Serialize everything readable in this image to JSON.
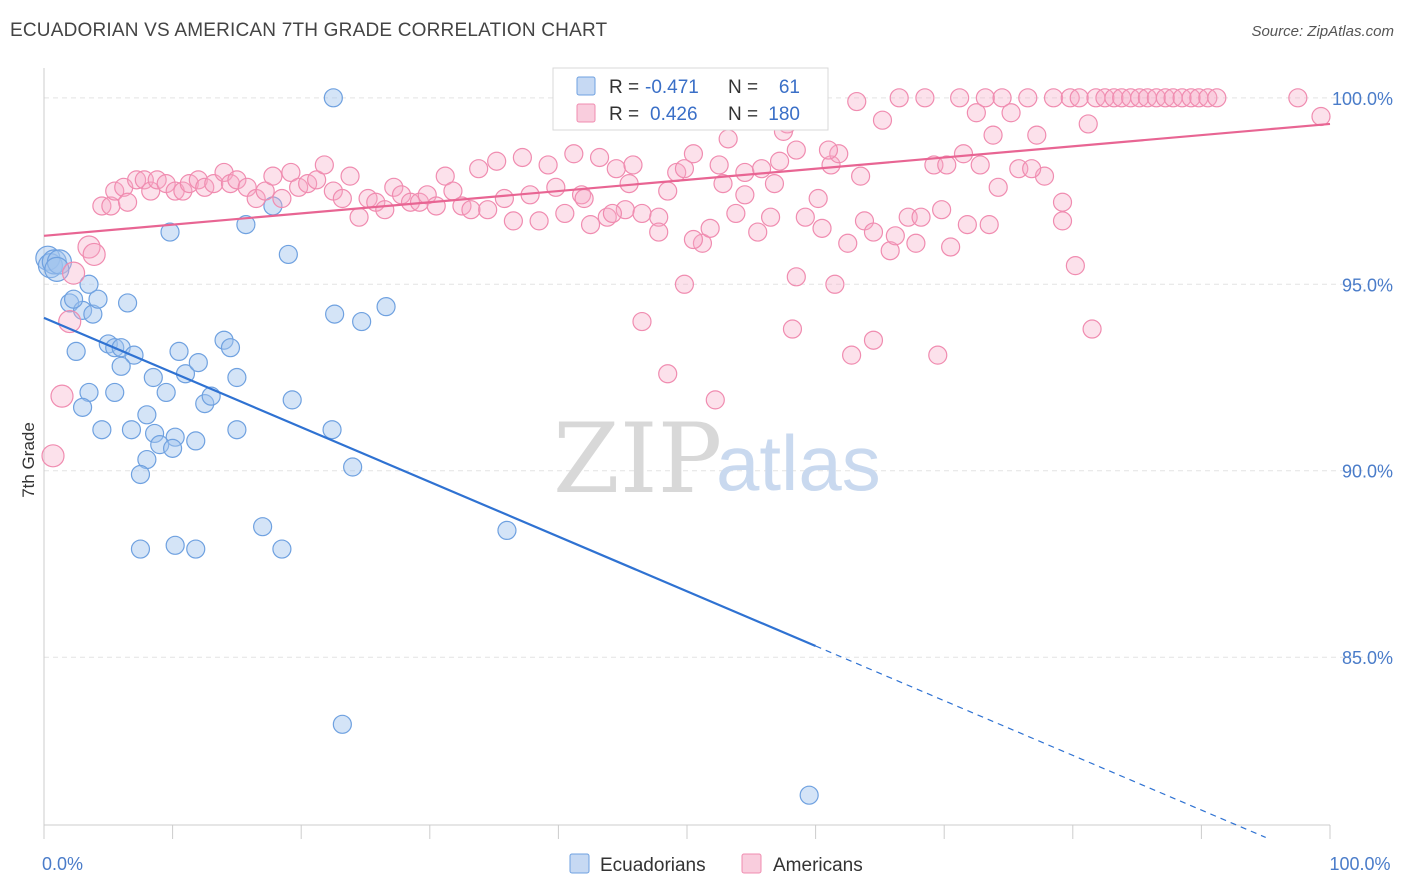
{
  "header": {
    "title": "ECUADORIAN VS AMERICAN 7TH GRADE CORRELATION CHART",
    "source": "Source: ZipAtlas.com"
  },
  "watermark": {
    "part1": "ZIP",
    "part2": "atlas"
  },
  "legend": {
    "r_label": "R =",
    "n_label": "N =",
    "rows": [
      {
        "r": "-0.471",
        "n": "61",
        "color": "#6fa1e0"
      },
      {
        "r": "0.426",
        "n": "180",
        "color": "#f08cb0"
      }
    ]
  },
  "bottom_legend": [
    {
      "label": "Ecuadorians",
      "color": "#6fa1e0"
    },
    {
      "label": "Americans",
      "color": "#f08cb0"
    }
  ],
  "chart_data": {
    "type": "scatter",
    "ylabel": "7th Grade",
    "xlim": [
      0,
      100
    ],
    "ylim": [
      80.5,
      100.8
    ],
    "y_ticks": [
      {
        "value": 100,
        "label": "100.0%"
      },
      {
        "value": 95,
        "label": "95.0%"
      },
      {
        "value": 90,
        "label": "90.0%"
      },
      {
        "value": 85,
        "label": "85.0%"
      }
    ],
    "x_tick_labels": [
      {
        "value": 0,
        "label": "0.0%"
      },
      {
        "value": 100,
        "label": "100.0%"
      }
    ],
    "x_minor_ticks": [
      0,
      10,
      20,
      30,
      40,
      50,
      60,
      70,
      80,
      90,
      100
    ],
    "grid": true,
    "series": [
      {
        "name": "Ecuadorians",
        "color": "#6fa1e0",
        "trend": {
          "x0": 0,
          "y0": 94.1,
          "x1": 60,
          "y1": 85.3,
          "dash_to_x": 95
        },
        "points": [
          [
            0.3,
            95.7
          ],
          [
            0.5,
            95.5
          ],
          [
            0.8,
            95.6
          ],
          [
            1.2,
            95.6
          ],
          [
            3.5,
            95.0
          ],
          [
            2.0,
            94.5
          ],
          [
            3.0,
            94.3
          ],
          [
            3.8,
            94.2
          ],
          [
            4.2,
            94.6
          ],
          [
            6.5,
            94.5
          ],
          [
            5.0,
            93.4
          ],
          [
            5.5,
            93.3
          ],
          [
            6.0,
            93.3
          ],
          [
            7.0,
            93.1
          ],
          [
            2.5,
            93.2
          ],
          [
            8.5,
            92.5
          ],
          [
            9.5,
            92.1
          ],
          [
            10.5,
            93.2
          ],
          [
            11.0,
            92.6
          ],
          [
            12.0,
            92.9
          ],
          [
            14.0,
            93.5
          ],
          [
            14.5,
            93.3
          ],
          [
            15.0,
            92.5
          ],
          [
            6.0,
            92.8
          ],
          [
            3.5,
            92.1
          ],
          [
            5.5,
            92.1
          ],
          [
            3.0,
            91.7
          ],
          [
            8.0,
            91.5
          ],
          [
            12.5,
            91.8
          ],
          [
            13.0,
            92.0
          ],
          [
            4.5,
            91.1
          ],
          [
            6.8,
            91.1
          ],
          [
            8.6,
            91.0
          ],
          [
            10.2,
            90.9
          ],
          [
            11.8,
            90.8
          ],
          [
            15.0,
            91.1
          ],
          [
            9.0,
            90.7
          ],
          [
            10.0,
            90.6
          ],
          [
            8.0,
            90.3
          ],
          [
            7.5,
            89.9
          ],
          [
            17.0,
            88.5
          ],
          [
            7.5,
            87.9
          ],
          [
            10.2,
            88.0
          ],
          [
            11.8,
            87.9
          ],
          [
            18.5,
            87.9
          ],
          [
            22.5,
            100.0
          ],
          [
            9.8,
            96.4
          ],
          [
            15.7,
            96.6
          ],
          [
            17.8,
            97.1
          ],
          [
            19.0,
            95.8
          ],
          [
            22.6,
            94.2
          ],
          [
            24.7,
            94.0
          ],
          [
            26.6,
            94.4
          ],
          [
            19.3,
            91.9
          ],
          [
            22.4,
            91.1
          ],
          [
            24.0,
            90.1
          ],
          [
            36.0,
            88.4
          ],
          [
            23.2,
            83.2
          ],
          [
            59.5,
            81.3
          ],
          [
            1.0,
            95.4
          ],
          [
            2.3,
            94.6
          ]
        ]
      },
      {
        "name": "Americans",
        "color": "#f08cb0",
        "trend": {
          "x0": 0,
          "y0": 96.3,
          "x1": 100,
          "y1": 99.3
        },
        "points": [
          [
            0.7,
            90.4
          ],
          [
            1.4,
            92.0
          ],
          [
            2.0,
            94.0
          ],
          [
            2.3,
            95.3
          ],
          [
            3.5,
            96.0
          ],
          [
            3.9,
            95.8
          ],
          [
            4.5,
            97.1
          ],
          [
            5.2,
            97.1
          ],
          [
            5.5,
            97.5
          ],
          [
            6.2,
            97.6
          ],
          [
            6.5,
            97.2
          ],
          [
            7.2,
            97.8
          ],
          [
            7.8,
            97.8
          ],
          [
            8.3,
            97.5
          ],
          [
            8.8,
            97.8
          ],
          [
            9.5,
            97.7
          ],
          [
            10.2,
            97.5
          ],
          [
            10.8,
            97.5
          ],
          [
            11.3,
            97.7
          ],
          [
            12.0,
            97.8
          ],
          [
            12.5,
            97.6
          ],
          [
            13.2,
            97.7
          ],
          [
            14.0,
            98.0
          ],
          [
            14.5,
            97.7
          ],
          [
            15.0,
            97.8
          ],
          [
            15.8,
            97.6
          ],
          [
            16.5,
            97.3
          ],
          [
            17.2,
            97.5
          ],
          [
            17.8,
            97.9
          ],
          [
            18.5,
            97.3
          ],
          [
            19.2,
            98.0
          ],
          [
            19.8,
            97.6
          ],
          [
            20.5,
            97.7
          ],
          [
            21.2,
            97.8
          ],
          [
            21.8,
            98.2
          ],
          [
            22.5,
            97.5
          ],
          [
            23.2,
            97.3
          ],
          [
            23.8,
            97.9
          ],
          [
            24.5,
            96.8
          ],
          [
            25.2,
            97.3
          ],
          [
            25.8,
            97.2
          ],
          [
            26.5,
            97.0
          ],
          [
            27.2,
            97.6
          ],
          [
            27.8,
            97.4
          ],
          [
            28.5,
            97.2
          ],
          [
            29.2,
            97.2
          ],
          [
            29.8,
            97.4
          ],
          [
            30.5,
            97.1
          ],
          [
            31.2,
            97.9
          ],
          [
            31.8,
            97.5
          ],
          [
            32.5,
            97.1
          ],
          [
            33.2,
            97.0
          ],
          [
            33.8,
            98.1
          ],
          [
            34.5,
            97.0
          ],
          [
            35.2,
            98.3
          ],
          [
            35.8,
            97.3
          ],
          [
            36.5,
            96.7
          ],
          [
            37.2,
            98.4
          ],
          [
            37.8,
            97.4
          ],
          [
            38.5,
            96.7
          ],
          [
            39.2,
            98.2
          ],
          [
            39.8,
            97.6
          ],
          [
            40.5,
            96.9
          ],
          [
            41.2,
            98.5
          ],
          [
            41.8,
            97.4
          ],
          [
            42.5,
            96.6
          ],
          [
            43.2,
            98.4
          ],
          [
            43.8,
            96.8
          ],
          [
            44.5,
            98.1
          ],
          [
            45.2,
            97.0
          ],
          [
            45.8,
            98.2
          ],
          [
            46.5,
            96.9
          ],
          [
            47.2,
            99.6
          ],
          [
            47.8,
            96.8
          ],
          [
            48.5,
            97.5
          ],
          [
            49.2,
            98.0
          ],
          [
            49.8,
            98.1
          ],
          [
            50.5,
            98.5
          ],
          [
            51.2,
            96.1
          ],
          [
            51.8,
            96.5
          ],
          [
            52.5,
            98.2
          ],
          [
            53.2,
            98.9
          ],
          [
            53.8,
            96.9
          ],
          [
            54.5,
            98.0
          ],
          [
            55.2,
            99.9
          ],
          [
            55.8,
            98.1
          ],
          [
            56.5,
            96.8
          ],
          [
            57.2,
            98.3
          ],
          [
            57.8,
            99.3
          ],
          [
            58.5,
            98.6
          ],
          [
            59.2,
            96.8
          ],
          [
            59.8,
            99.9
          ],
          [
            60.5,
            96.5
          ],
          [
            61.2,
            98.2
          ],
          [
            61.8,
            98.5
          ],
          [
            62.5,
            96.1
          ],
          [
            63.2,
            99.9
          ],
          [
            63.8,
            96.7
          ],
          [
            64.5,
            96.4
          ],
          [
            65.2,
            99.4
          ],
          [
            65.8,
            95.9
          ],
          [
            66.5,
            100.0
          ],
          [
            67.2,
            96.8
          ],
          [
            67.8,
            96.1
          ],
          [
            68.5,
            100.0
          ],
          [
            69.2,
            98.2
          ],
          [
            69.8,
            97.0
          ],
          [
            70.5,
            96.0
          ],
          [
            71.2,
            100.0
          ],
          [
            71.8,
            96.6
          ],
          [
            72.5,
            99.6
          ],
          [
            73.2,
            100.0
          ],
          [
            73.8,
            99.0
          ],
          [
            74.5,
            100.0
          ],
          [
            75.2,
            99.6
          ],
          [
            75.8,
            98.1
          ],
          [
            76.5,
            100.0
          ],
          [
            77.2,
            99.0
          ],
          [
            77.8,
            97.9
          ],
          [
            78.5,
            100.0
          ],
          [
            79.2,
            96.7
          ],
          [
            79.8,
            100.0
          ],
          [
            80.5,
            100.0
          ],
          [
            81.2,
            99.3
          ],
          [
            81.8,
            100.0
          ],
          [
            82.5,
            100.0
          ],
          [
            83.2,
            100.0
          ],
          [
            83.8,
            100.0
          ],
          [
            84.5,
            100.0
          ],
          [
            85.2,
            100.0
          ],
          [
            85.8,
            100.0
          ],
          [
            86.5,
            100.0
          ],
          [
            87.2,
            100.0
          ],
          [
            87.8,
            100.0
          ],
          [
            88.5,
            100.0
          ],
          [
            89.2,
            100.0
          ],
          [
            89.8,
            100.0
          ],
          [
            90.5,
            100.0
          ],
          [
            91.2,
            100.0
          ],
          [
            97.5,
            100.0
          ],
          [
            99.3,
            99.5
          ],
          [
            46.5,
            94.0
          ],
          [
            48.5,
            92.6
          ],
          [
            49.8,
            95.0
          ],
          [
            52.2,
            91.9
          ],
          [
            58.5,
            95.2
          ],
          [
            58.2,
            93.8
          ],
          [
            61.5,
            95.0
          ],
          [
            62.8,
            93.1
          ],
          [
            64.5,
            93.5
          ],
          [
            69.5,
            93.1
          ],
          [
            73.5,
            96.6
          ],
          [
            72.8,
            98.2
          ],
          [
            79.2,
            97.2
          ],
          [
            80.2,
            95.5
          ],
          [
            81.5,
            93.8
          ],
          [
            54.5,
            97.4
          ],
          [
            66.2,
            96.3
          ],
          [
            68.2,
            96.8
          ],
          [
            42.0,
            97.3
          ],
          [
            44.2,
            96.9
          ],
          [
            45.5,
            97.7
          ],
          [
            47.8,
            96.4
          ],
          [
            50.5,
            96.2
          ],
          [
            52.8,
            97.7
          ],
          [
            55.5,
            96.4
          ],
          [
            56.8,
            97.7
          ],
          [
            60.2,
            97.3
          ],
          [
            71.5,
            98.5
          ],
          [
            76.8,
            98.1
          ],
          [
            57.5,
            99.1
          ],
          [
            61.0,
            98.6
          ],
          [
            63.5,
            97.9
          ],
          [
            70.2,
            98.2
          ],
          [
            74.2,
            97.6
          ]
        ]
      }
    ]
  }
}
